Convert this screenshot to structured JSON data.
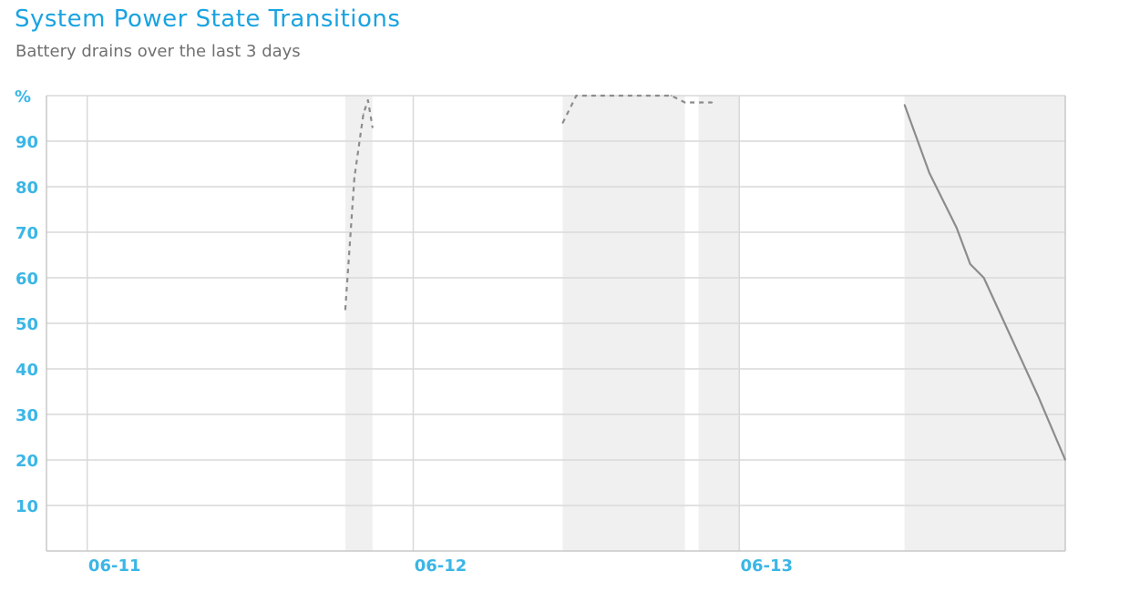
{
  "header": {
    "title": "System Power State Transitions",
    "subtitle": "Battery drains over the last 3 days"
  },
  "colors": {
    "title": "#1aa3e0",
    "tick_labels": "#3bb6e6",
    "grid": "#d9d9d9",
    "line": "#8c8c8c",
    "shade": "#f0f0f0"
  },
  "chart_data": {
    "type": "line",
    "ylabel": "%",
    "ylim": [
      0,
      100
    ],
    "yticks": [
      10,
      20,
      30,
      40,
      50,
      60,
      70,
      80,
      90
    ],
    "xlim": [
      "06-10 21:00",
      "06-14 00:00"
    ],
    "xticks": [
      "06-11",
      "06-12",
      "06-13"
    ],
    "grid": true,
    "shaded_periods": [
      [
        "06-11 19:00",
        "06-11 21:00"
      ],
      [
        "06-12 11:00",
        "06-12 20:00"
      ],
      [
        "06-12 21:00",
        "06-13 00:00"
      ],
      [
        "06-13 12:10",
        "06-14 00:00"
      ]
    ],
    "series": [
      {
        "style": "dashed",
        "points": [
          [
            "06-11 19:00",
            53
          ],
          [
            "06-11 19:40",
            82
          ],
          [
            "06-11 20:20",
            96
          ],
          [
            "06-11 20:40",
            99
          ],
          [
            "06-11 21:00",
            93
          ]
        ]
      },
      {
        "style": "dashed",
        "points": [
          [
            "06-12 11:00",
            94
          ],
          [
            "06-12 12:00",
            100
          ],
          [
            "06-12 14:00",
            100
          ],
          [
            "06-12 19:00",
            100
          ],
          [
            "06-12 20:00",
            98.5
          ],
          [
            "06-12 22:00",
            98.5
          ]
        ]
      },
      {
        "style": "solid",
        "points": [
          [
            "06-13 12:10",
            98
          ],
          [
            "06-13 14:00",
            83
          ],
          [
            "06-13 16:00",
            71
          ],
          [
            "06-13 17:00",
            63
          ],
          [
            "06-13 18:00",
            60
          ],
          [
            "06-13 20:00",
            47
          ],
          [
            "06-13 22:00",
            34
          ],
          [
            "06-13 24:00",
            20
          ]
        ]
      }
    ]
  }
}
